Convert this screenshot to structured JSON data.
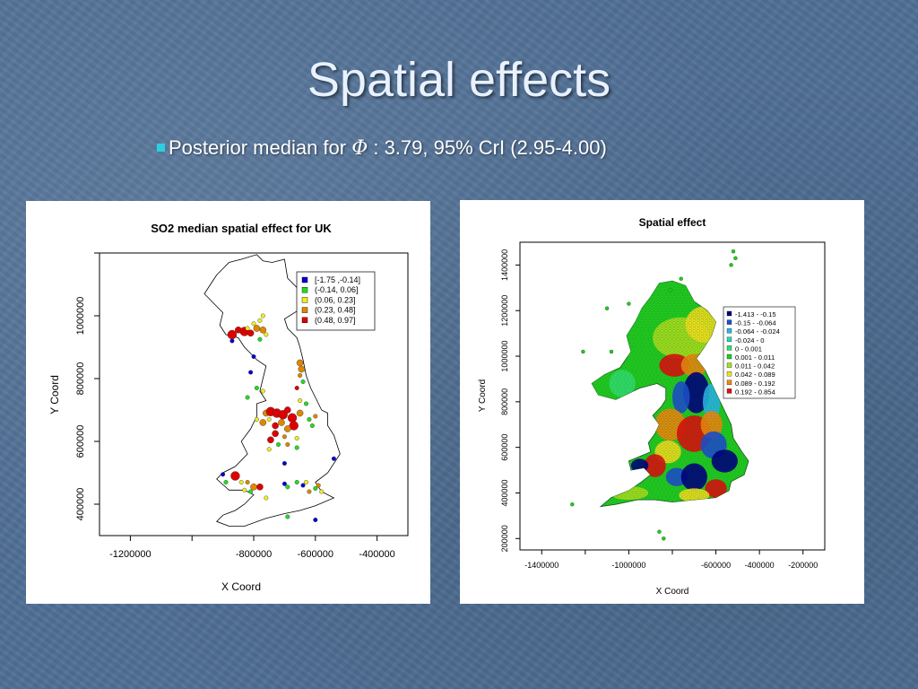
{
  "slide": {
    "title": "Spatial effects",
    "bullet_prefix": "Posterior median for ",
    "bullet_symbol": "Φ",
    "bullet_suffix": " : 3.79, 95% CrI (2.95-4.00)"
  },
  "colors": {
    "background": "#4f6f95",
    "title": "#e8f1ff",
    "bullet_marker": "#2ad0e0"
  },
  "chart_data": [
    {
      "type": "scatter",
      "title": "SO2 median spatial effect for UK",
      "xlabel": "X Coord",
      "ylabel": "Y Coord",
      "xlim": [
        -1300000,
        -300000
      ],
      "ylim": [
        300000,
        1200000
      ],
      "x_ticks": [
        -1200000,
        -800000,
        -600000,
        -400000
      ],
      "x_tick_labels": [
        "-1200000",
        "-800000",
        "-600000",
        "-400000"
      ],
      "x_minor_ticks": [
        -1000000
      ],
      "y_ticks": [
        400000,
        600000,
        800000,
        1000000
      ],
      "y_tick_labels": [
        "400000",
        "600000",
        "800000",
        "1000000"
      ],
      "y_minor_ticks": [
        1200000
      ],
      "legend_position": "top-right",
      "legend": [
        {
          "label": "[-1.75 ,-0.14]",
          "color": "#0000cc"
        },
        {
          "label": "(-0.14,  0.06]",
          "color": "#22dd22"
        },
        {
          "label": "(0.06, 0.23]",
          "color": "#eeee22"
        },
        {
          "label": "(0.23,  0.48]",
          "color": "#dd8800"
        },
        {
          "label": "(0.48,  0.97]",
          "color": "#dd0000"
        }
      ],
      "points": [
        {
          "x": -870000,
          "y": 940000,
          "cls": 4,
          "size": 3
        },
        {
          "x": -850000,
          "y": 955000,
          "cls": 4,
          "size": 2
        },
        {
          "x": -830000,
          "y": 950000,
          "cls": 4,
          "size": 3
        },
        {
          "x": -810000,
          "y": 945000,
          "cls": 4,
          "size": 2
        },
        {
          "x": -790000,
          "y": 960000,
          "cls": 3,
          "size": 2
        },
        {
          "x": -770000,
          "y": 955000,
          "cls": 3,
          "size": 2
        },
        {
          "x": -760000,
          "y": 940000,
          "cls": 2,
          "size": 1
        },
        {
          "x": -780000,
          "y": 925000,
          "cls": 1,
          "size": 1
        },
        {
          "x": -820000,
          "y": 960000,
          "cls": 2,
          "size": 1
        },
        {
          "x": -800000,
          "y": 975000,
          "cls": 2,
          "size": 1
        },
        {
          "x": -780000,
          "y": 985000,
          "cls": 2,
          "size": 1
        },
        {
          "x": -870000,
          "y": 920000,
          "cls": 0,
          "size": 1
        },
        {
          "x": -625000,
          "y": 1080000,
          "cls": 2,
          "size": 1
        },
        {
          "x": -620000,
          "y": 1050000,
          "cls": 0,
          "size": 1
        },
        {
          "x": -630000,
          "y": 1010000,
          "cls": 3,
          "size": 1
        },
        {
          "x": -770000,
          "y": 1000000,
          "cls": 2,
          "size": 1
        },
        {
          "x": -800000,
          "y": 870000,
          "cls": 0,
          "size": 1
        },
        {
          "x": -650000,
          "y": 850000,
          "cls": 3,
          "size": 2
        },
        {
          "x": -645000,
          "y": 830000,
          "cls": 3,
          "size": 2
        },
        {
          "x": -650000,
          "y": 810000,
          "cls": 3,
          "size": 1
        },
        {
          "x": -640000,
          "y": 790000,
          "cls": 1,
          "size": 1
        },
        {
          "x": -660000,
          "y": 770000,
          "cls": 4,
          "size": 1
        },
        {
          "x": -630000,
          "y": 720000,
          "cls": 1,
          "size": 1
        },
        {
          "x": -810000,
          "y": 820000,
          "cls": 0,
          "size": 1
        },
        {
          "x": -790000,
          "y": 770000,
          "cls": 1,
          "size": 1
        },
        {
          "x": -770000,
          "y": 760000,
          "cls": 2,
          "size": 1
        },
        {
          "x": -820000,
          "y": 740000,
          "cls": 1,
          "size": 1
        },
        {
          "x": -760000,
          "y": 690000,
          "cls": 3,
          "size": 2
        },
        {
          "x": -745000,
          "y": 695000,
          "cls": 4,
          "size": 3
        },
        {
          "x": -725000,
          "y": 690000,
          "cls": 4,
          "size": 3
        },
        {
          "x": -705000,
          "y": 685000,
          "cls": 4,
          "size": 3
        },
        {
          "x": -690000,
          "y": 700000,
          "cls": 4,
          "size": 2
        },
        {
          "x": -675000,
          "y": 675000,
          "cls": 4,
          "size": 3
        },
        {
          "x": -670000,
          "y": 650000,
          "cls": 4,
          "size": 3
        },
        {
          "x": -690000,
          "y": 640000,
          "cls": 3,
          "size": 2
        },
        {
          "x": -710000,
          "y": 660000,
          "cls": 3,
          "size": 2
        },
        {
          "x": -730000,
          "y": 650000,
          "cls": 4,
          "size": 2
        },
        {
          "x": -750000,
          "y": 670000,
          "cls": 2,
          "size": 1
        },
        {
          "x": -770000,
          "y": 660000,
          "cls": 3,
          "size": 2
        },
        {
          "x": -790000,
          "y": 670000,
          "cls": 2,
          "size": 1
        },
        {
          "x": -730000,
          "y": 625000,
          "cls": 4,
          "size": 2
        },
        {
          "x": -745000,
          "y": 605000,
          "cls": 4,
          "size": 2
        },
        {
          "x": -700000,
          "y": 615000,
          "cls": 3,
          "size": 1
        },
        {
          "x": -650000,
          "y": 690000,
          "cls": 3,
          "size": 2
        },
        {
          "x": -620000,
          "y": 670000,
          "cls": 1,
          "size": 1
        },
        {
          "x": -600000,
          "y": 680000,
          "cls": 3,
          "size": 1
        },
        {
          "x": -610000,
          "y": 650000,
          "cls": 1,
          "size": 1
        },
        {
          "x": -660000,
          "y": 610000,
          "cls": 2,
          "size": 1
        },
        {
          "x": -690000,
          "y": 590000,
          "cls": 3,
          "size": 1
        },
        {
          "x": -720000,
          "y": 590000,
          "cls": 1,
          "size": 1
        },
        {
          "x": -750000,
          "y": 575000,
          "cls": 2,
          "size": 1
        },
        {
          "x": -660000,
          "y": 580000,
          "cls": 1,
          "size": 1
        },
        {
          "x": -540000,
          "y": 545000,
          "cls": 0,
          "size": 1
        },
        {
          "x": -700000,
          "y": 530000,
          "cls": 0,
          "size": 1
        },
        {
          "x": -860000,
          "y": 490000,
          "cls": 4,
          "size": 3
        },
        {
          "x": -840000,
          "y": 470000,
          "cls": 2,
          "size": 1
        },
        {
          "x": -820000,
          "y": 470000,
          "cls": 3,
          "size": 1
        },
        {
          "x": -800000,
          "y": 455000,
          "cls": 3,
          "size": 2
        },
        {
          "x": -780000,
          "y": 455000,
          "cls": 4,
          "size": 2
        },
        {
          "x": -810000,
          "y": 440000,
          "cls": 1,
          "size": 1
        },
        {
          "x": -900000,
          "y": 495000,
          "cls": 0,
          "size": 1
        },
        {
          "x": -890000,
          "y": 470000,
          "cls": 1,
          "size": 1
        },
        {
          "x": -830000,
          "y": 445000,
          "cls": 2,
          "size": 1
        },
        {
          "x": -700000,
          "y": 465000,
          "cls": 0,
          "size": 1
        },
        {
          "x": -690000,
          "y": 455000,
          "cls": 1,
          "size": 1
        },
        {
          "x": -660000,
          "y": 470000,
          "cls": 1,
          "size": 1
        },
        {
          "x": -640000,
          "y": 460000,
          "cls": 0,
          "size": 1
        },
        {
          "x": -620000,
          "y": 440000,
          "cls": 3,
          "size": 1
        },
        {
          "x": -600000,
          "y": 450000,
          "cls": 1,
          "size": 1
        },
        {
          "x": -580000,
          "y": 440000,
          "cls": 2,
          "size": 1
        },
        {
          "x": -590000,
          "y": 460000,
          "cls": 3,
          "size": 1
        },
        {
          "x": -630000,
          "y": 470000,
          "cls": 2,
          "size": 1
        },
        {
          "x": -760000,
          "y": 420000,
          "cls": 2,
          "size": 1
        },
        {
          "x": -690000,
          "y": 360000,
          "cls": 1,
          "size": 1
        },
        {
          "x": -600000,
          "y": 350000,
          "cls": 0,
          "size": 1
        },
        {
          "x": -650000,
          "y": 730000,
          "cls": 2,
          "size": 1
        }
      ]
    },
    {
      "type": "scatter",
      "title": "Spatial effect",
      "xlabel": "X Coord",
      "ylabel": "Y Coord",
      "xlim": [
        -1500000,
        -100000
      ],
      "ylim": [
        150000,
        1500000
      ],
      "x_ticks": [
        -1400000,
        -1000000,
        -600000,
        -400000,
        -200000
      ],
      "x_tick_labels": [
        "-1400000",
        "-1000000",
        "-600000",
        "-400000",
        "-200000"
      ],
      "x_minor_ticks": [
        -1200000,
        -800000
      ],
      "y_ticks": [
        200000,
        400000,
        600000,
        800000,
        1000000,
        1200000,
        1400000
      ],
      "y_tick_labels": [
        "200000",
        "400000",
        "600000",
        "800000",
        "1000000",
        "1200000",
        "1400000"
      ],
      "legend_position": "top-right",
      "legend": [
        {
          "label": "-1.413 - -0.15",
          "color": "#000080"
        },
        {
          "label": "-0.15 - -0.064",
          "color": "#1e50d0"
        },
        {
          "label": "-0.064 - -0.024",
          "color": "#29b8e8"
        },
        {
          "label": "-0.024 - 0",
          "color": "#28d8b0"
        },
        {
          "label": "0 - 0.001",
          "color": "#33e070"
        },
        {
          "label": "0.001 - 0.011",
          "color": "#22cc22"
        },
        {
          "label": "0.011 - 0.042",
          "color": "#a8e020"
        },
        {
          "label": "0.042 - 0.089",
          "color": "#f2e020"
        },
        {
          "label": "0.089 - 0.192",
          "color": "#ee8a10"
        },
        {
          "label": "0.192 - 0.854",
          "color": "#e01010"
        }
      ],
      "regions": [
        {
          "x": -830000,
          "y": 1220000,
          "rx": 140000,
          "ry": 120000,
          "cls": 5
        },
        {
          "x": -960000,
          "y": 1100000,
          "rx": 130000,
          "ry": 110000,
          "cls": 5
        },
        {
          "x": -760000,
          "y": 1080000,
          "rx": 130000,
          "ry": 90000,
          "cls": 6
        },
        {
          "x": -650000,
          "y": 1140000,
          "rx": 90000,
          "ry": 80000,
          "cls": 7
        },
        {
          "x": -1100000,
          "y": 860000,
          "rx": 90000,
          "ry": 80000,
          "cls": 5
        },
        {
          "x": -1030000,
          "y": 880000,
          "rx": 60000,
          "ry": 60000,
          "cls": 4
        },
        {
          "x": -790000,
          "y": 960000,
          "rx": 70000,
          "ry": 50000,
          "cls": 9
        },
        {
          "x": -700000,
          "y": 960000,
          "rx": 60000,
          "ry": 50000,
          "cls": 8
        },
        {
          "x": -690000,
          "y": 840000,
          "rx": 60000,
          "ry": 90000,
          "cls": 0
        },
        {
          "x": -760000,
          "y": 820000,
          "rx": 40000,
          "ry": 70000,
          "cls": 1
        },
        {
          "x": -620000,
          "y": 800000,
          "rx": 40000,
          "ry": 80000,
          "cls": 2
        },
        {
          "x": -810000,
          "y": 700000,
          "rx": 70000,
          "ry": 70000,
          "cls": 8
        },
        {
          "x": -700000,
          "y": 660000,
          "rx": 80000,
          "ry": 80000,
          "cls": 9
        },
        {
          "x": -620000,
          "y": 700000,
          "rx": 50000,
          "ry": 60000,
          "cls": 8
        },
        {
          "x": -610000,
          "y": 610000,
          "rx": 60000,
          "ry": 60000,
          "cls": 1
        },
        {
          "x": -560000,
          "y": 540000,
          "rx": 60000,
          "ry": 50000,
          "cls": 0
        },
        {
          "x": -820000,
          "y": 580000,
          "rx": 60000,
          "ry": 50000,
          "cls": 7
        },
        {
          "x": -880000,
          "y": 520000,
          "rx": 50000,
          "ry": 50000,
          "cls": 9
        },
        {
          "x": -950000,
          "y": 520000,
          "rx": 40000,
          "ry": 30000,
          "cls": 0
        },
        {
          "x": -780000,
          "y": 470000,
          "rx": 50000,
          "ry": 40000,
          "cls": 1
        },
        {
          "x": -700000,
          "y": 470000,
          "rx": 60000,
          "ry": 60000,
          "cls": 0
        },
        {
          "x": -600000,
          "y": 420000,
          "rx": 50000,
          "ry": 40000,
          "cls": 9
        },
        {
          "x": -850000,
          "y": 400000,
          "rx": 70000,
          "ry": 30000,
          "cls": 5
        },
        {
          "x": -1000000,
          "y": 400000,
          "rx": 90000,
          "ry": 30000,
          "cls": 6
        },
        {
          "x": -700000,
          "y": 390000,
          "rx": 70000,
          "ry": 30000,
          "cls": 7
        }
      ]
    }
  ]
}
